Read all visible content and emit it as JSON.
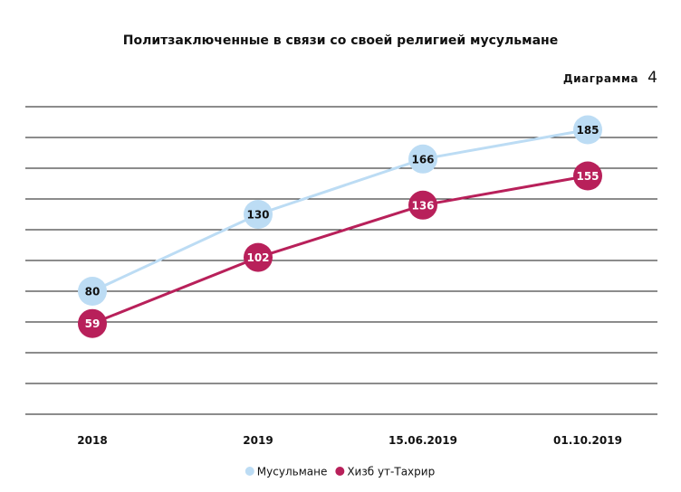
{
  "chart_data": {
    "type": "line",
    "title": "Политзаключенные в связи со своей религией мусульмане",
    "badge_label": "Диаграмма",
    "badge_number": "4",
    "categories": [
      "2018",
      "2019",
      "15.06.2019",
      "01.10.2019"
    ],
    "series": [
      {
        "name": "Мусульмане",
        "values": [
          80,
          130,
          166,
          185
        ],
        "color": "#bcdcf4",
        "label_color": "#111111"
      },
      {
        "name": "Хизб ут-Тахрир",
        "values": [
          59,
          102,
          136,
          155
        ],
        "color": "#b8205a",
        "label_color": "#ffffff"
      }
    ],
    "ylim": [
      0,
      200
    ],
    "grid": true,
    "legend_position": "bottom-center"
  }
}
